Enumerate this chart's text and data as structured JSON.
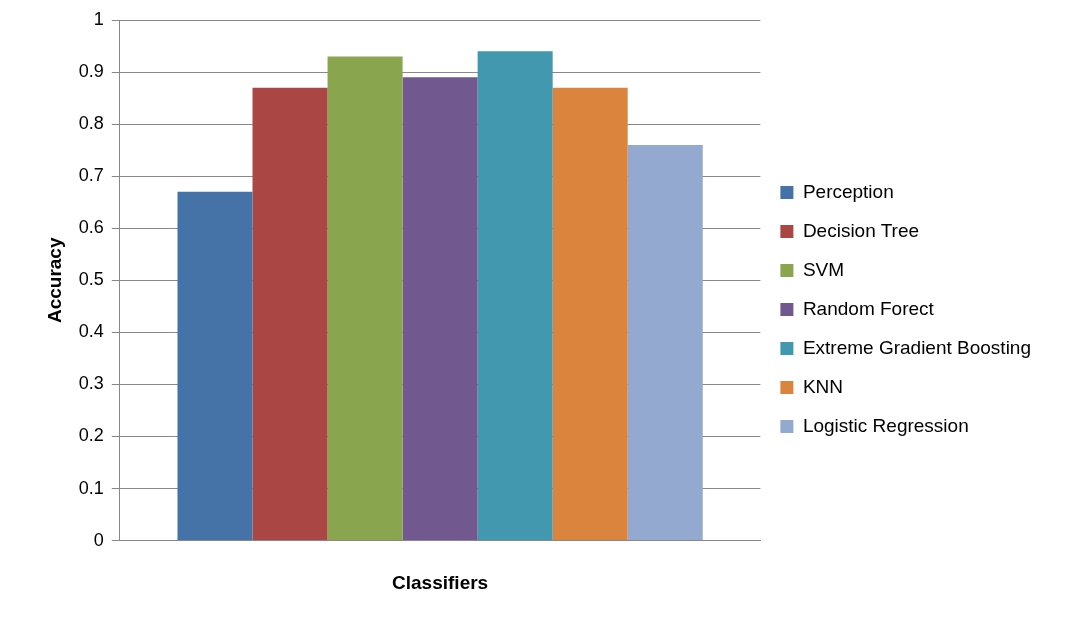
{
  "chart_data": {
    "type": "bar",
    "xlabel": "Classifiers",
    "ylabel": "Accuracy",
    "categories": [
      null
    ],
    "series": [
      {
        "name": "Perception",
        "color": "#4572a7",
        "values": [
          0.67
        ]
      },
      {
        "name": "Decision Tree",
        "color": "#aa4643",
        "values": [
          0.87
        ]
      },
      {
        "name": "SVM",
        "color": "#89a54e",
        "values": [
          0.93
        ]
      },
      {
        "name": "Random Forect",
        "color": "#71588f",
        "values": [
          0.89
        ]
      },
      {
        "name": "Extreme Gradient Boosting",
        "color": "#4198af",
        "values": [
          0.94
        ]
      },
      {
        "name": "KNN",
        "color": "#db843d",
        "values": [
          0.87
        ]
      },
      {
        "name": "Logistic Regression",
        "color": "#93a9cf",
        "values": [
          0.76
        ]
      }
    ],
    "ylim": [
      0,
      1
    ],
    "yticks": [
      0,
      0.1,
      0.2,
      0.3,
      0.4,
      0.5,
      0.6,
      0.7,
      0.8,
      0.9,
      1
    ],
    "grid": "y",
    "legend": "right"
  }
}
